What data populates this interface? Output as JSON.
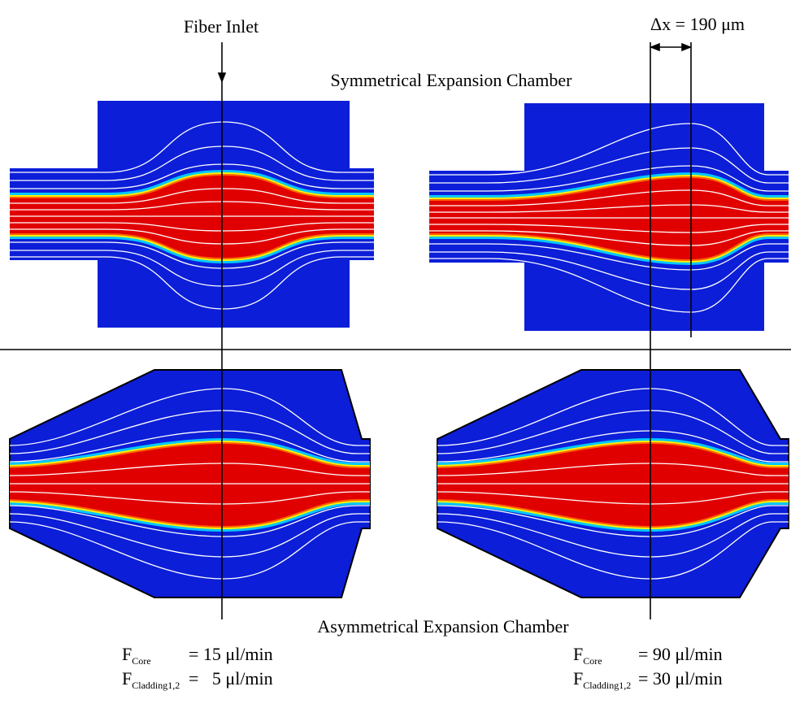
{
  "labels": {
    "fiber_inlet": "Fiber Inlet",
    "delta_x": "Δx = 190 μm",
    "top_title": "Symmetrical Expansion Chamber",
    "bottom_title": "Asymmetrical Expansion Chamber"
  },
  "conditions": [
    {
      "core_symbol": "F",
      "core_subscript": "Core",
      "core_value": "= 15 μl/min",
      "cladding_symbol": "F",
      "cladding_subscript": "Cladding1,2",
      "cladding_value": "=   5 μl/min"
    },
    {
      "core_symbol": "F",
      "core_subscript": "Core",
      "core_value": "= 90 μl/min",
      "cladding_symbol": "F",
      "cladding_subscript": "Cladding1,2",
      "cladding_value": "= 30 μl/min"
    }
  ]
}
